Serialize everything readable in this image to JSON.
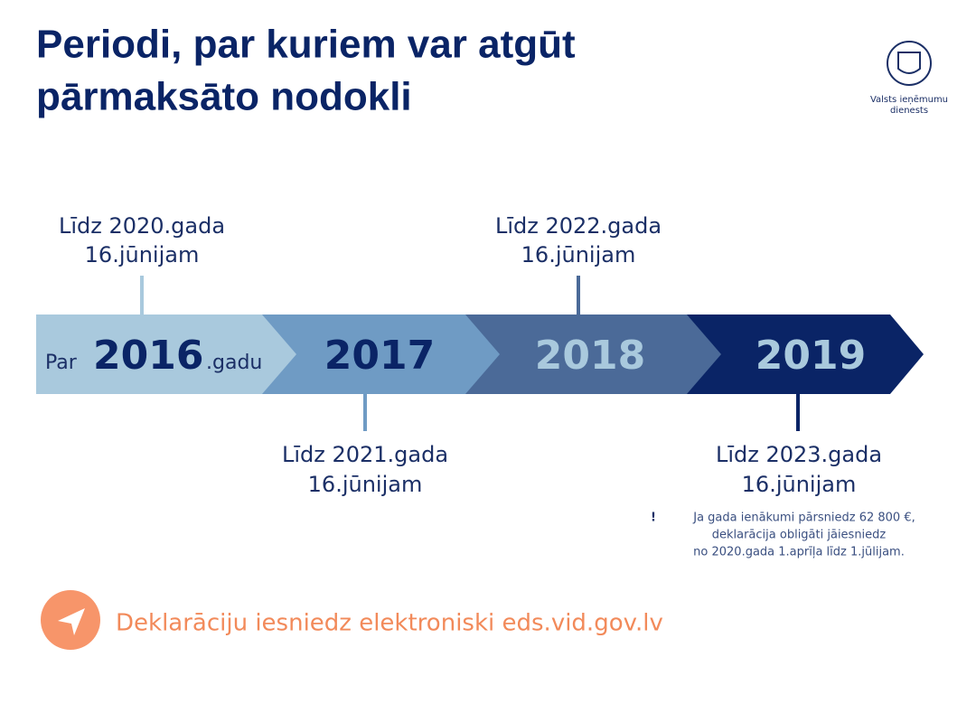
{
  "header": {
    "title_lines": [
      "Periodi, par kuriem var atgūt",
      "pārmaksāto nodokli"
    ],
    "logo_lines": [
      "Valsts ieņēmumu",
      "dienests"
    ]
  },
  "timeline": {
    "segments": [
      {
        "prefix": "Par",
        "year": "2016",
        "suffix": ".gadu"
      },
      {
        "year": "2017"
      },
      {
        "year": "2018"
      },
      {
        "year": "2019"
      }
    ],
    "deadlines": [
      {
        "lines": [
          "Līdz 2020.gada",
          "16.jūnijam"
        ]
      },
      {
        "lines": [
          "Līdz 2021.gada",
          "16.jūnijam"
        ]
      },
      {
        "lines": [
          "Līdz 2022.gada",
          "16.jūnijam"
        ]
      },
      {
        "lines": [
          "Līdz 2023.gada",
          "16.jūnijam"
        ]
      }
    ],
    "note": {
      "mark": "!",
      "lines": [
        "Ja gada ienākumi pārsniedz 62 800 €,",
        "deklarācija obligāti jāiesniedz",
        "no 2020.gada 1.aprīļa līdz 1.jūlijam."
      ]
    }
  },
  "footer": {
    "text": "Deklarāciju iesniedz elektroniski eds.vid.gov.lv"
  }
}
